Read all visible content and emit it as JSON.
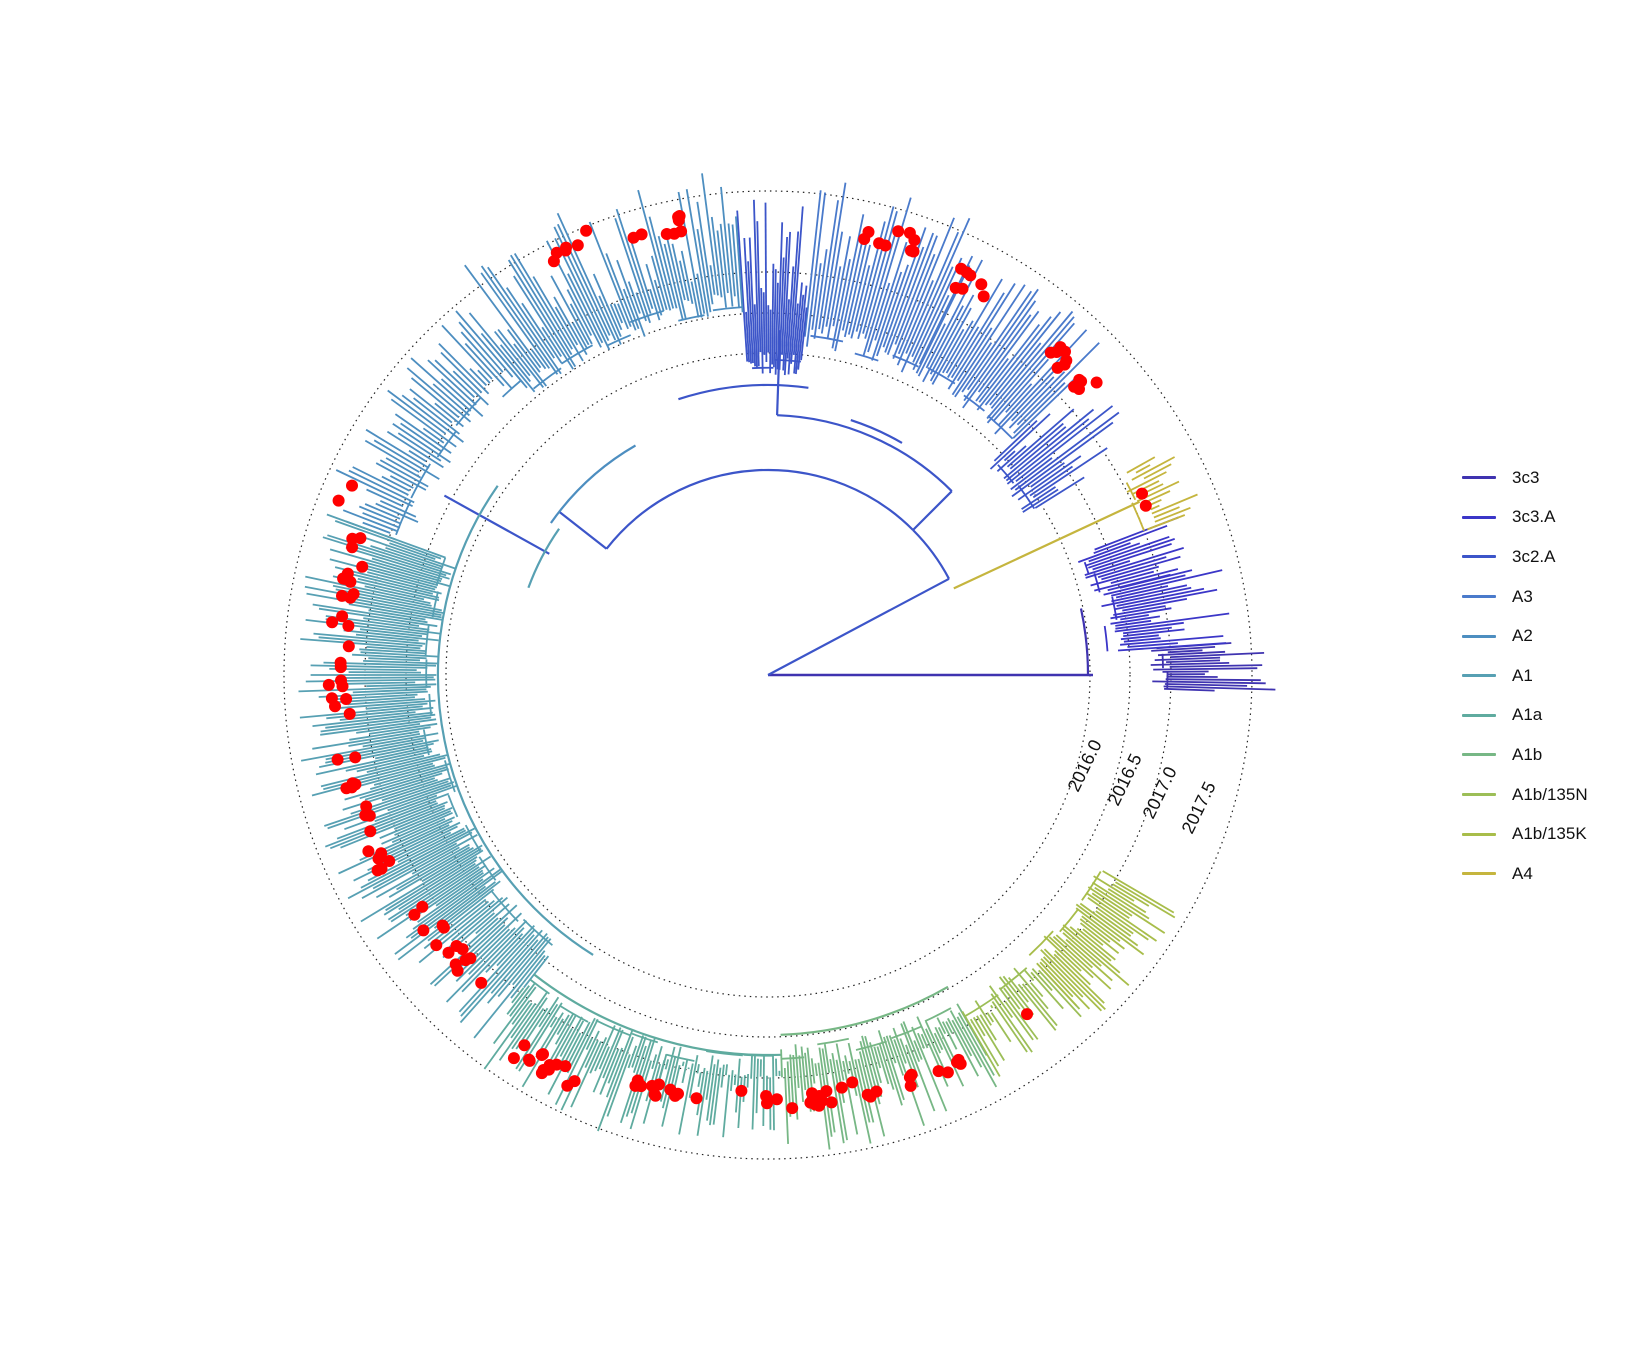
{
  "chart_data": {
    "type": "circular-phylogenetic-tree",
    "time_axis": {
      "ticks": [
        "2016.0",
        "2016.5",
        "2017.0",
        "2017.5"
      ]
    },
    "clades": [
      {
        "name": "3c3",
        "color": "#3f33b0"
      },
      {
        "name": "3c3.A",
        "color": "#3b36c8"
      },
      {
        "name": "3c2.A",
        "color": "#3c55c9"
      },
      {
        "name": "A3",
        "color": "#4a7acb"
      },
      {
        "name": "A2",
        "color": "#4d8ec0"
      },
      {
        "name": "A1",
        "color": "#57a0b3"
      },
      {
        "name": "A1a",
        "color": "#5fab9f"
      },
      {
        "name": "A1b",
        "color": "#77b785"
      },
      {
        "name": "A1b/135N",
        "color": "#9cbe57"
      },
      {
        "name": "A1b/135K",
        "color": "#a8bd4a"
      },
      {
        "name": "A4",
        "color": "#c5b53e"
      }
    ],
    "highlight_marker": {
      "color": "#ff0000",
      "shape": "circle"
    }
  }
}
